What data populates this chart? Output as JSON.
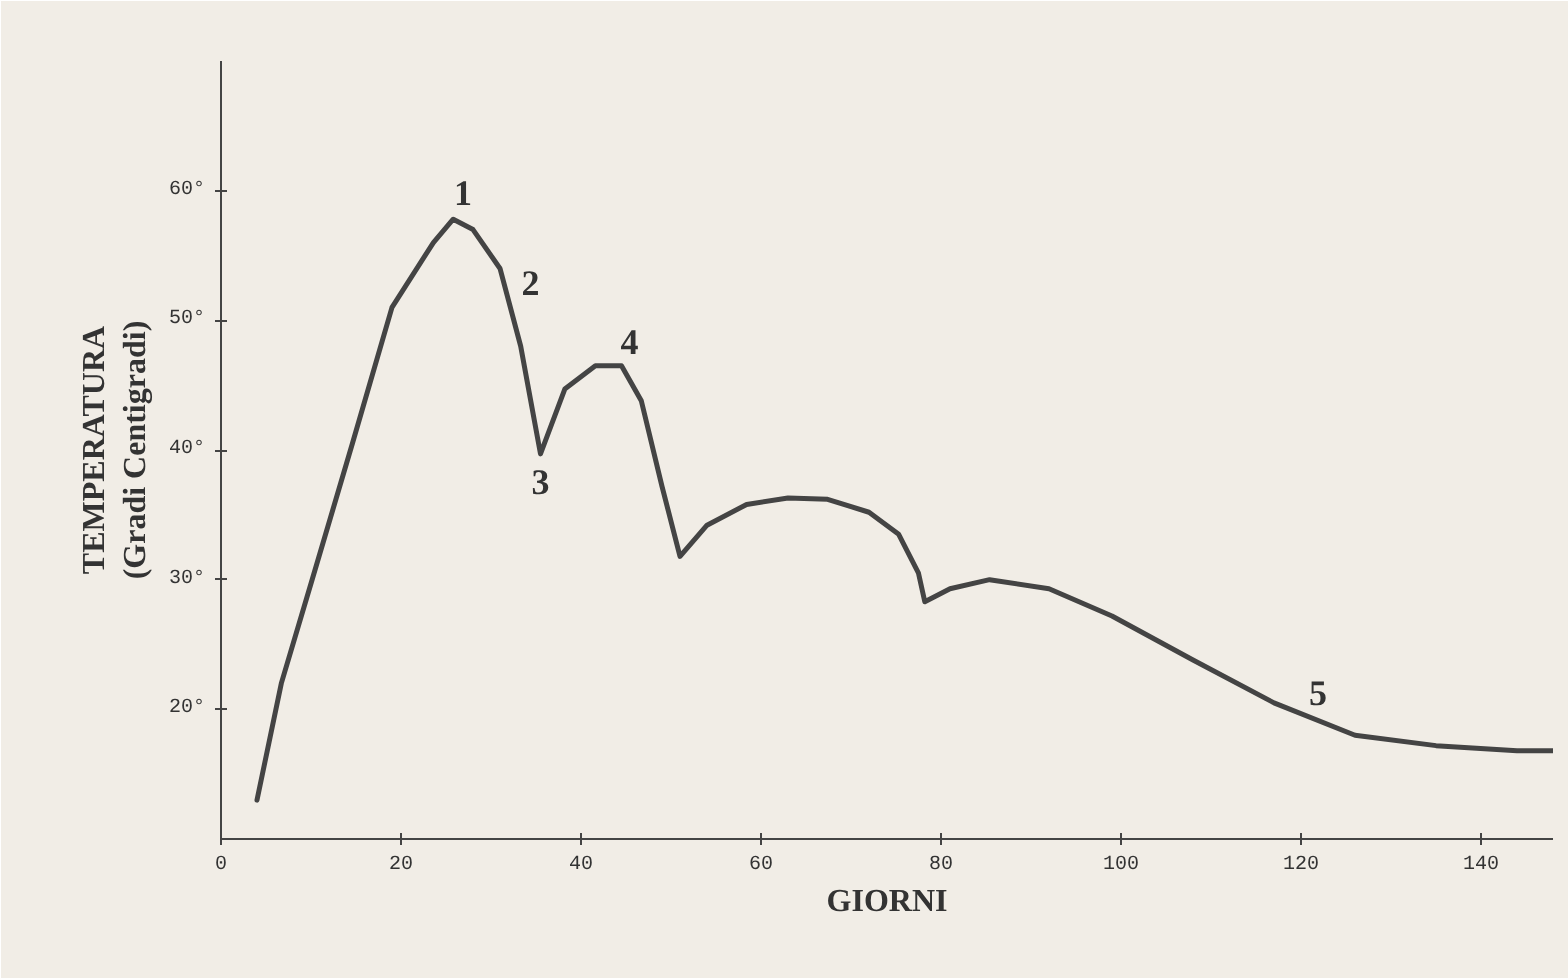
{
  "chart_data": {
    "type": "line",
    "xlabel": "GIORNI",
    "ylabel": "TEMPERATURA\n(Gradi Centigradi)",
    "x": [
      4,
      6.7,
      10,
      14.6,
      19,
      23.6,
      25.8,
      28,
      31,
      33.3,
      35.5,
      38.2,
      41.6,
      44.5,
      46.7,
      49,
      51,
      54,
      58.4,
      63,
      67.4,
      72,
      75.3,
      77.5,
      78.2,
      81,
      85.4,
      92,
      99,
      108,
      117,
      126,
      135,
      144,
      148
    ],
    "series": [
      {
        "color": "#444444",
        "values": [
          13,
          22,
          29.7,
          40.5,
          51,
          56,
          57.8,
          57,
          54,
          48,
          39.7,
          44.7,
          46.5,
          46.5,
          43.8,
          37.2,
          31.8,
          34.2,
          35.8,
          36.3,
          36.2,
          35.2,
          33.5,
          30.5,
          28.3,
          29.3,
          30,
          29.3,
          27.2,
          23.8,
          20.5,
          18,
          17.2,
          16.8,
          16.8
        ]
      }
    ],
    "xlim": [
      0,
      148
    ],
    "ylim": [
      10,
      70
    ],
    "xticks": [
      0,
      20,
      40,
      60,
      80,
      100,
      120,
      140
    ],
    "yticks": [
      {
        "value": 20,
        "label": "20°"
      },
      {
        "value": 30,
        "label": "30°"
      },
      {
        "value": 40,
        "label": "40°"
      },
      {
        "value": 50,
        "label": "50°"
      },
      {
        "value": 60,
        "label": "60°"
      }
    ],
    "grid": false,
    "marker": "none",
    "line_style": "solid",
    "annotations": [
      {
        "text": "1",
        "x": 26,
        "y": 58
      },
      {
        "text": "2",
        "x": 33.5,
        "y": 51
      },
      {
        "text": "3",
        "x": 35.5,
        "y": 39.7
      },
      {
        "text": "4",
        "x": 44.5,
        "y": 46.5
      },
      {
        "text": "5",
        "x": 121,
        "y": 19.4
      }
    ]
  }
}
